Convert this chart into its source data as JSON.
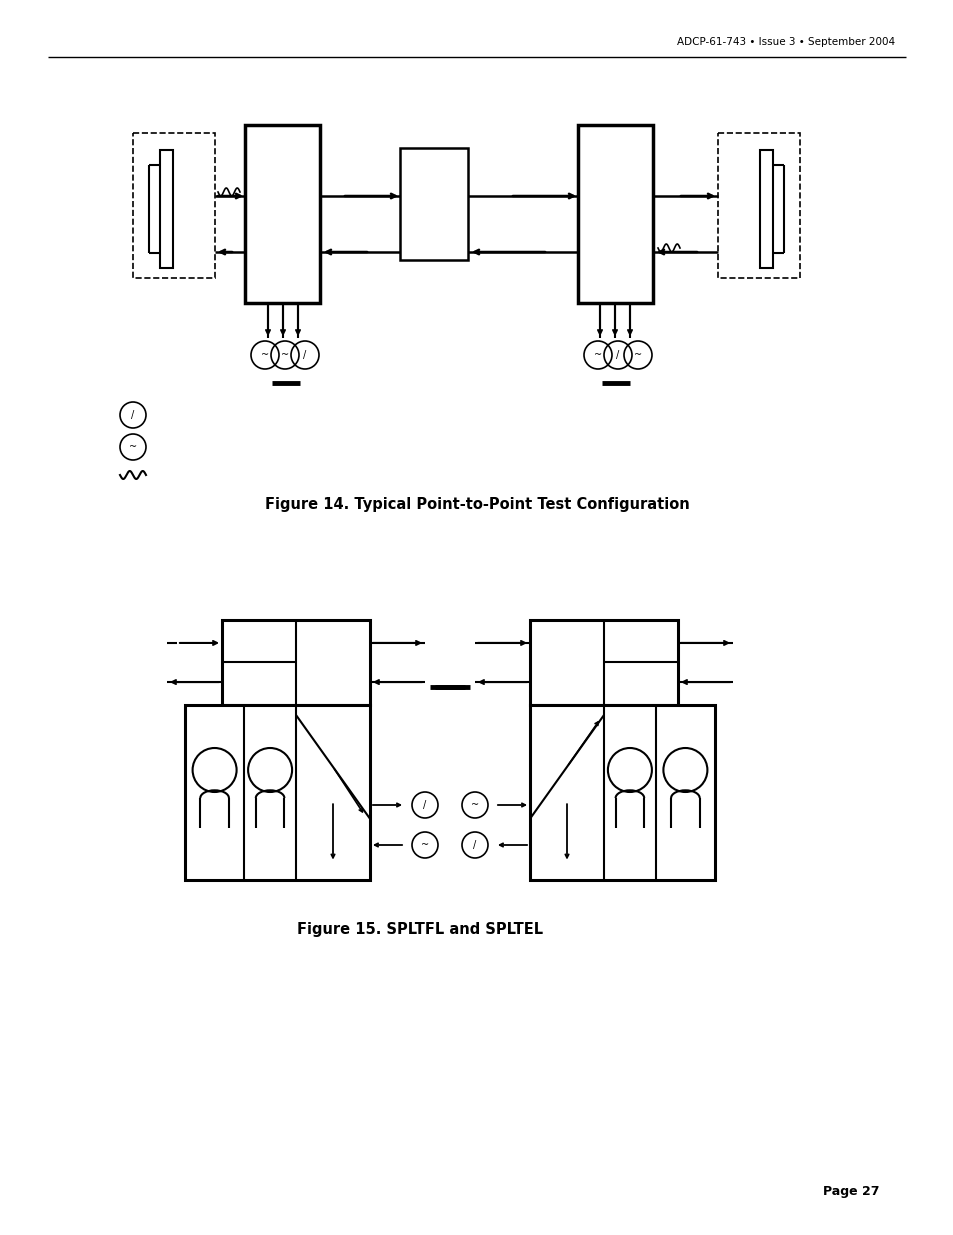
{
  "header_text": "ADCP-61-743 • Issue 3 • September 2004",
  "footer_text": "Page 27",
  "fig14_caption": "Figure 14. Typical Point-to-Point Test Configuration",
  "fig15_caption": "Figure 15. SPLTFL and SPLTEL",
  "bg_color": "#ffffff",
  "line_color": "#000000"
}
